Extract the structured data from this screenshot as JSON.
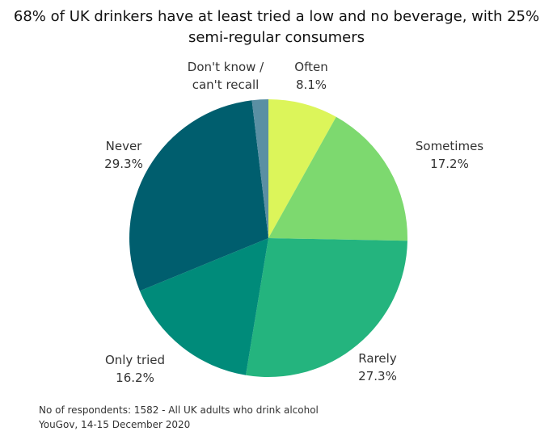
{
  "chart_data": {
    "type": "pie",
    "title": "68% of UK drinkers have at least tried a low and no beverage, with 25% semi-regular consumers",
    "categories": [
      "Often",
      "Sometimes",
      "Rarely",
      "Only tried",
      "Never",
      "Don't know / can't recall"
    ],
    "values": [
      8.1,
      17.2,
      27.3,
      16.2,
      29.3,
      1.9
    ],
    "value_labels": [
      "8.1%",
      "17.2%",
      "27.3%",
      "16.2%",
      "29.3%",
      null
    ],
    "colors": [
      "#dcf55a",
      "#7dd96f",
      "#24b47e",
      "#008b7a",
      "#005e6e",
      "#5a8fa3"
    ],
    "footnotes": [
      "No of respondents: 1582 - All UK adults who drink alcohol",
      "YouGov, 14-15 December 2020"
    ]
  }
}
